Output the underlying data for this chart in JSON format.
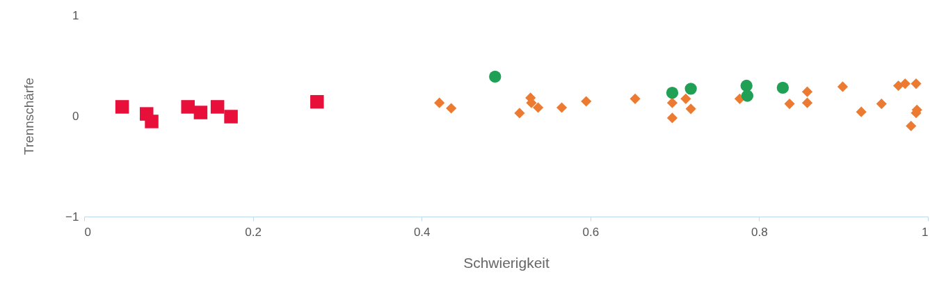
{
  "chart_data": {
    "type": "scatter",
    "xlabel": "Schwierigkeit",
    "ylabel": "Trennschärfe",
    "xlim": [
      0,
      1
    ],
    "ylim": [
      -1,
      1
    ],
    "xticks": [
      0,
      0.2,
      0.4,
      0.6,
      0.8,
      1
    ],
    "yticks": [
      -1,
      0,
      1
    ],
    "grid": false,
    "series": [
      {
        "color": "#e8103a",
        "marker": "square",
        "x": [
          0.045,
          0.074,
          0.08,
          0.123,
          0.138,
          0.158,
          0.174,
          0.276
        ],
        "values": [
          0.09,
          0.02,
          -0.055,
          0.09,
          0.034,
          0.09,
          -0.007,
          0.14
        ]
      },
      {
        "color": "#ec7a30",
        "marker": "diamond",
        "x": [
          0.421,
          0.435,
          0.516,
          0.529,
          0.53,
          0.538,
          0.566,
          0.595,
          0.653,
          0.697,
          0.713,
          0.719,
          0.697,
          0.777,
          0.836,
          0.857,
          0.857,
          0.899,
          0.921,
          0.945,
          0.965,
          0.973,
          0.986,
          0.987,
          0.986,
          0.98
        ],
        "values": [
          0.13,
          0.076,
          0.028,
          0.18,
          0.13,
          0.083,
          0.083,
          0.145,
          0.17,
          0.13,
          0.17,
          0.07,
          -0.02,
          0.17,
          0.12,
          0.24,
          0.13,
          0.29,
          0.04,
          0.12,
          0.3,
          0.32,
          0.32,
          0.06,
          0.03,
          -0.1
        ]
      },
      {
        "color": "#1fa055",
        "marker": "circle",
        "x": [
          0.487,
          0.697,
          0.719,
          0.785,
          0.786,
          0.828
        ],
        "values": [
          0.39,
          0.23,
          0.27,
          0.3,
          0.2,
          0.28
        ]
      }
    ]
  }
}
